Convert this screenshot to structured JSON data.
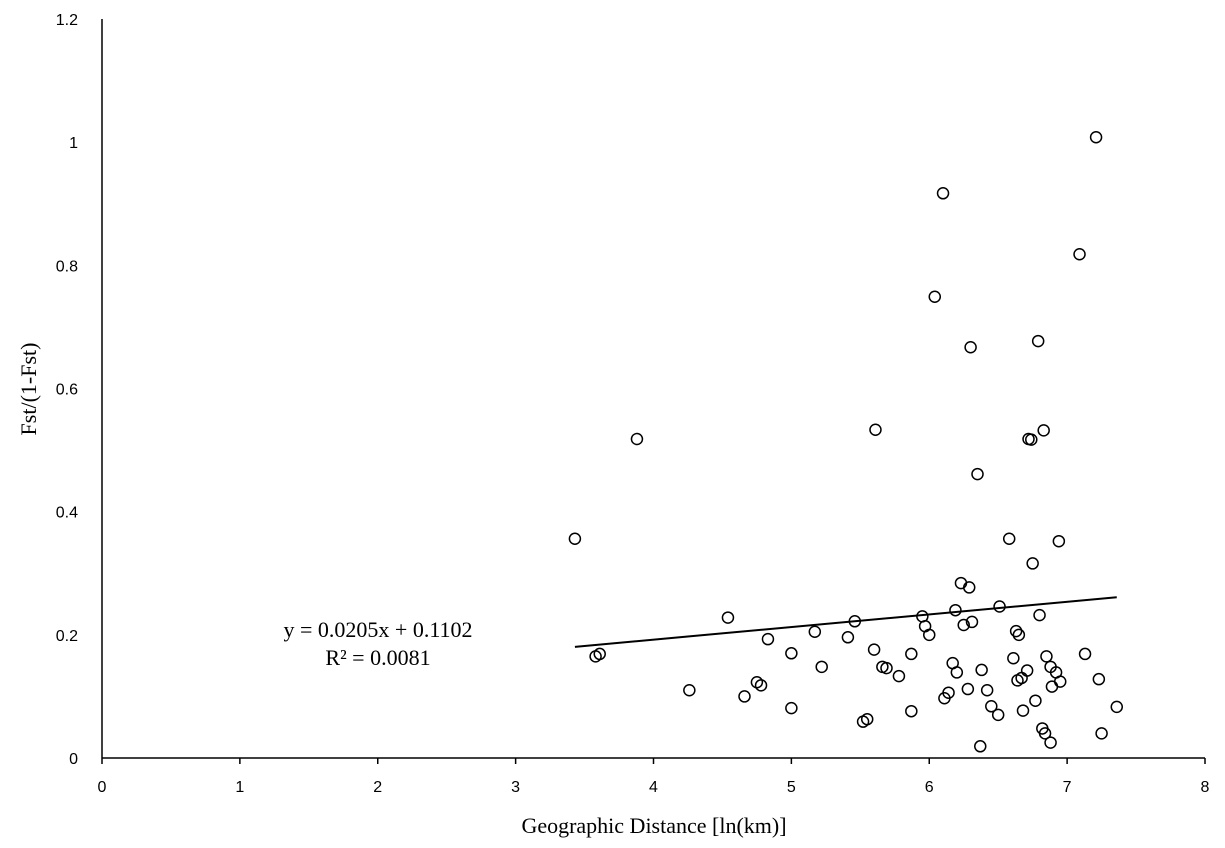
{
  "chart_data": {
    "type": "scatter",
    "title": "",
    "xlabel": "Geographic Distance [ln(km)]",
    "ylabel": "Fst/(1-Fst)",
    "xlim": [
      0,
      8
    ],
    "ylim": [
      0,
      1.2
    ],
    "x_ticks": [
      "0",
      "1",
      "2",
      "3",
      "4",
      "5",
      "6",
      "7",
      "8"
    ],
    "y_ticks": [
      "0",
      "0.2",
      "0.4",
      "0.6",
      "0.8",
      "1",
      "1.2"
    ],
    "grid": false,
    "legend": "none",
    "marker": "open-circle",
    "colors": {
      "marker": "#000000",
      "axis": "#000000",
      "trendline": "#000000"
    },
    "points": [
      [
        3.43,
        0.356
      ],
      [
        3.58,
        0.165
      ],
      [
        3.61,
        0.169
      ],
      [
        3.88,
        0.518
      ],
      [
        4.26,
        0.11
      ],
      [
        4.54,
        0.228
      ],
      [
        4.66,
        0.1
      ],
      [
        4.75,
        0.123
      ],
      [
        4.78,
        0.118
      ],
      [
        4.83,
        0.193
      ],
      [
        5.0,
        0.17
      ],
      [
        5.0,
        0.081
      ],
      [
        5.17,
        0.205
      ],
      [
        5.22,
        0.148
      ],
      [
        5.41,
        0.196
      ],
      [
        5.46,
        0.222
      ],
      [
        5.52,
        0.059
      ],
      [
        5.55,
        0.063
      ],
      [
        5.6,
        0.176
      ],
      [
        5.61,
        0.533
      ],
      [
        5.66,
        0.148
      ],
      [
        5.69,
        0.146
      ],
      [
        5.78,
        0.133
      ],
      [
        5.87,
        0.169
      ],
      [
        5.87,
        0.076
      ],
      [
        5.95,
        0.23
      ],
      [
        5.97,
        0.214
      ],
      [
        6.0,
        0.2
      ],
      [
        6.04,
        0.749
      ],
      [
        6.1,
        0.917
      ],
      [
        6.11,
        0.097
      ],
      [
        6.14,
        0.106
      ],
      [
        6.17,
        0.154
      ],
      [
        6.19,
        0.24
      ],
      [
        6.2,
        0.139
      ],
      [
        6.23,
        0.284
      ],
      [
        6.25,
        0.216
      ],
      [
        6.28,
        0.112
      ],
      [
        6.29,
        0.277
      ],
      [
        6.3,
        0.667
      ],
      [
        6.31,
        0.221
      ],
      [
        6.35,
        0.461
      ],
      [
        6.37,
        0.019
      ],
      [
        6.38,
        0.143
      ],
      [
        6.42,
        0.11
      ],
      [
        6.45,
        0.084
      ],
      [
        6.5,
        0.07
      ],
      [
        6.51,
        0.246
      ],
      [
        6.58,
        0.356
      ],
      [
        6.61,
        0.162
      ],
      [
        6.63,
        0.206
      ],
      [
        6.64,
        0.126
      ],
      [
        6.65,
        0.2
      ],
      [
        6.67,
        0.13
      ],
      [
        6.68,
        0.077
      ],
      [
        6.71,
        0.142
      ],
      [
        6.72,
        0.518
      ],
      [
        6.74,
        0.517
      ],
      [
        6.75,
        0.316
      ],
      [
        6.77,
        0.093
      ],
      [
        6.79,
        0.677
      ],
      [
        6.8,
        0.232
      ],
      [
        6.82,
        0.048
      ],
      [
        6.83,
        0.532
      ],
      [
        6.84,
        0.04
      ],
      [
        6.85,
        0.165
      ],
      [
        6.88,
        0.148
      ],
      [
        6.88,
        0.025
      ],
      [
        6.89,
        0.116
      ],
      [
        6.92,
        0.139
      ],
      [
        6.94,
        0.352
      ],
      [
        6.95,
        0.124
      ],
      [
        7.09,
        0.818
      ],
      [
        7.13,
        0.169
      ],
      [
        7.21,
        1.008
      ],
      [
        7.23,
        0.128
      ],
      [
        7.25,
        0.04
      ],
      [
        7.36,
        0.083
      ]
    ],
    "trendline": {
      "type": "linear",
      "slope": 0.0205,
      "intercept": 0.1102,
      "x_range": [
        3.43,
        7.36
      ],
      "equation": "y = 0.0205x + 0.1102",
      "r_squared": "R² = 0.0081"
    }
  }
}
